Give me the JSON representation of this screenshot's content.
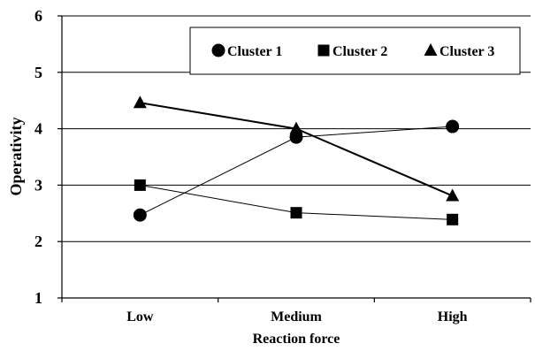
{
  "chart_data": {
    "type": "line",
    "xlabel": "Reaction force",
    "ylabel": "Operativity",
    "categories": [
      "Low",
      "Medium",
      "High"
    ],
    "ylim": [
      1,
      6
    ],
    "yticks": [
      "1",
      "2",
      "3",
      "4",
      "5",
      "6"
    ],
    "grid": "horizontal",
    "legend_position": "top-right",
    "series": [
      {
        "name": "Cluster 1",
        "marker": "circle",
        "line": "thin",
        "values": [
          2.47,
          3.85,
          4.04
        ]
      },
      {
        "name": "Cluster 2",
        "marker": "square",
        "line": "thin",
        "values": [
          3.0,
          2.51,
          2.39
        ]
      },
      {
        "name": "Cluster 3",
        "marker": "triangle",
        "line": "thick",
        "values": [
          4.46,
          4.0,
          2.81
        ]
      }
    ],
    "colors": {
      "lines": "#000000",
      "grid": "#000000",
      "background": "#ffffff"
    }
  }
}
